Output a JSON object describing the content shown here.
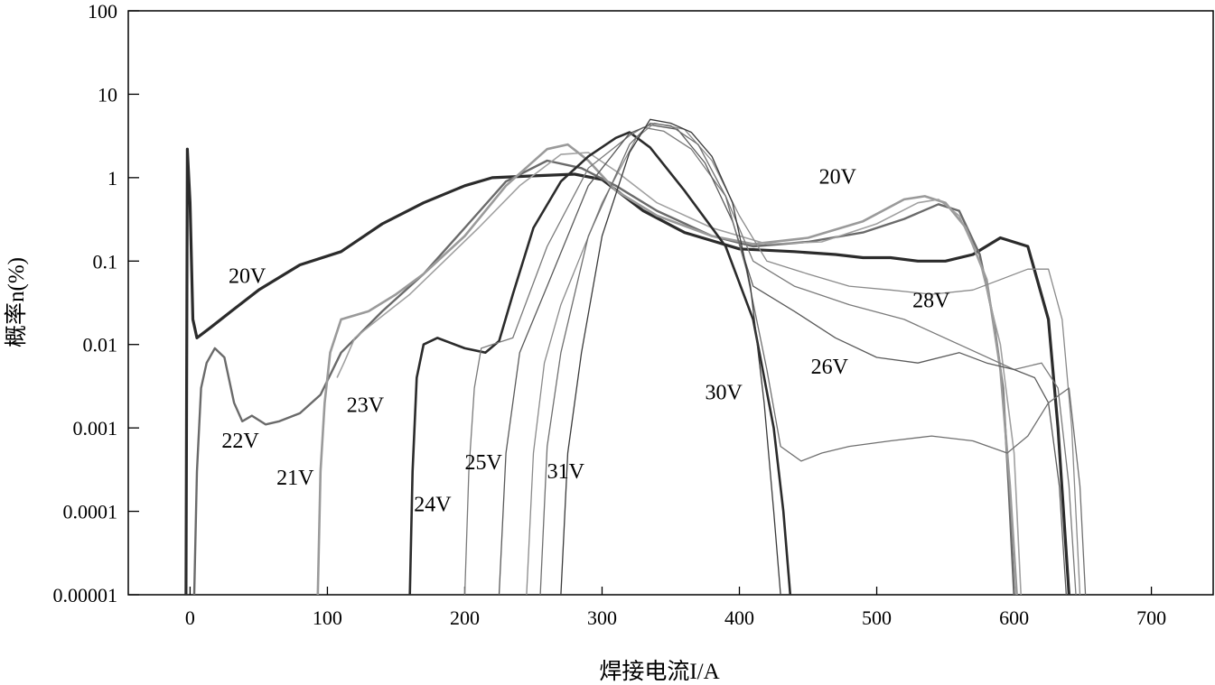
{
  "chart_data": {
    "type": "line",
    "title": "",
    "xlabel": "焊接电流I/A",
    "ylabel": "概率n(%)",
    "xlim": [
      -45,
      745
    ],
    "ylim": [
      1e-05,
      100
    ],
    "yscale": "log",
    "xticks": [
      0,
      100,
      200,
      300,
      400,
      500,
      600,
      700
    ],
    "xtick_labels": [
      "0",
      "100",
      "200",
      "300",
      "400",
      "500",
      "600",
      "700"
    ],
    "yticks": [
      1e-05,
      0.0001,
      0.001,
      0.01,
      0.1,
      1,
      10,
      100
    ],
    "ytick_labels": [
      "0.00001",
      "0.0001",
      "0.001",
      "0.01",
      "0.1",
      "1",
      "10",
      "100"
    ],
    "grid": false,
    "legend": "none",
    "series": [
      {
        "name": "20V",
        "color": "#2b2b2b",
        "x": [
          -3,
          -2,
          0,
          2,
          5,
          15,
          30,
          50,
          80,
          110,
          140,
          170,
          200,
          220,
          250,
          280,
          300,
          330,
          360,
          400,
          440,
          470,
          490,
          510,
          530,
          550,
          570,
          590,
          610,
          625,
          632,
          636,
          640
        ],
        "y": [
          1e-05,
          2.2,
          0.5,
          0.02,
          0.012,
          0.016,
          0.025,
          0.045,
          0.09,
          0.13,
          0.28,
          0.5,
          0.8,
          1.0,
          1.05,
          1.1,
          0.95,
          0.4,
          0.22,
          0.14,
          0.13,
          0.12,
          0.11,
          0.11,
          0.1,
          0.1,
          0.12,
          0.19,
          0.15,
          0.02,
          0.001,
          0.0001,
          1e-05
        ]
      },
      {
        "name": "22V",
        "color": "#6a6a6a",
        "x": [
          3,
          5,
          8,
          12,
          18,
          25,
          32,
          38,
          45,
          55,
          65,
          80,
          95,
          110,
          140,
          170,
          200,
          230,
          260,
          285,
          310,
          340,
          380,
          410,
          450,
          490,
          520,
          545,
          560,
          575,
          585,
          592,
          596,
          600
        ],
        "y": [
          1e-05,
          0.0003,
          0.003,
          0.006,
          0.009,
          0.007,
          0.002,
          0.0012,
          0.0014,
          0.0011,
          0.0012,
          0.0015,
          0.0025,
          0.008,
          0.025,
          0.07,
          0.25,
          0.9,
          1.6,
          1.3,
          0.8,
          0.4,
          0.2,
          0.15,
          0.17,
          0.22,
          0.32,
          0.48,
          0.4,
          0.12,
          0.02,
          0.003,
          0.0002,
          1e-05
        ]
      },
      {
        "name": "21V",
        "color": "#9a9a9a",
        "x": [
          93,
          95,
          98,
          102,
          110,
          130,
          150,
          170,
          200,
          230,
          260,
          275,
          290,
          310,
          340,
          380,
          410,
          450,
          490,
          520,
          535,
          550,
          565,
          580,
          590,
          597,
          602
        ],
        "y": [
          1e-05,
          0.0003,
          0.002,
          0.008,
          0.02,
          0.025,
          0.04,
          0.07,
          0.2,
          0.8,
          2.2,
          2.5,
          1.6,
          0.7,
          0.35,
          0.2,
          0.16,
          0.19,
          0.3,
          0.55,
          0.6,
          0.5,
          0.25,
          0.06,
          0.005,
          0.0002,
          1e-05
        ]
      },
      {
        "name": "23V",
        "color": "#a0a0a0",
        "x": [
          107,
          112,
          120,
          140,
          160,
          185,
          210,
          240,
          270,
          290,
          310,
          340,
          380,
          420,
          460,
          500,
          530,
          545,
          560,
          575,
          590,
          600,
          605
        ],
        "y": [
          0.004,
          0.006,
          0.012,
          0.022,
          0.04,
          0.1,
          0.25,
          0.8,
          1.9,
          2.0,
          1.2,
          0.5,
          0.25,
          0.16,
          0.17,
          0.28,
          0.5,
          0.55,
          0.35,
          0.1,
          0.01,
          0.0005,
          1e-05
        ]
      },
      {
        "name": "24V",
        "color": "#2b2b2b",
        "x": [
          160,
          162,
          165,
          170,
          180,
          200,
          215,
          225,
          235,
          250,
          270,
          290,
          310,
          320,
          335,
          360,
          390,
          410,
          425,
          432,
          437
        ],
        "y": [
          1e-05,
          0.0003,
          0.004,
          0.01,
          0.012,
          0.009,
          0.008,
          0.011,
          0.04,
          0.25,
          0.9,
          1.8,
          3.0,
          3.5,
          2.3,
          0.7,
          0.15,
          0.02,
          0.001,
          0.0001,
          1e-05
        ]
      },
      {
        "name": "25V",
        "color": "#7a7a7a",
        "x": [
          200,
          203,
          207,
          212,
          220,
          235,
          260,
          290,
          320,
          330,
          345,
          365,
          390,
          410,
          440,
          480,
          520,
          560,
          600,
          620,
          632,
          640,
          645
        ],
        "y": [
          1e-05,
          0.0003,
          0.003,
          0.009,
          0.01,
          0.012,
          0.15,
          1.3,
          3.2,
          4.0,
          3.6,
          2.2,
          0.6,
          0.1,
          0.05,
          0.03,
          0.02,
          0.01,
          0.005,
          0.006,
          0.003,
          0.0002,
          1e-05
        ]
      },
      {
        "name": "26V",
        "color": "#5a5a5a",
        "x": [
          225,
          230,
          240,
          260,
          290,
          320,
          335,
          355,
          375,
          395,
          410,
          440,
          470,
          500,
          530,
          560,
          580,
          600,
          615,
          625,
          633,
          638
        ],
        "y": [
          1e-05,
          0.0005,
          0.008,
          0.05,
          0.8,
          3.4,
          4.3,
          3.8,
          1.5,
          0.3,
          0.05,
          0.025,
          0.012,
          0.007,
          0.006,
          0.008,
          0.006,
          0.005,
          0.004,
          0.002,
          0.0002,
          1e-05
        ]
      },
      {
        "name": "28V",
        "color": "#8a8a8a",
        "x": [
          245,
          250,
          258,
          270,
          300,
          325,
          338,
          360,
          380,
          400,
          420,
          450,
          480,
          510,
          540,
          570,
          590,
          610,
          625,
          635,
          642,
          648
        ],
        "y": [
          1e-05,
          0.0005,
          0.006,
          0.03,
          0.5,
          3.0,
          4.5,
          3.8,
          1.6,
          0.35,
          0.1,
          0.07,
          0.05,
          0.045,
          0.04,
          0.045,
          0.06,
          0.08,
          0.08,
          0.02,
          0.001,
          1e-05
        ]
      },
      {
        "name": "30V",
        "color": "#6f6f6f",
        "x": [
          255,
          260,
          270,
          290,
          320,
          335,
          350,
          370,
          390,
          405,
          420,
          430,
          445,
          460,
          480,
          510,
          540,
          570,
          595,
          610,
          625,
          640,
          648,
          652
        ],
        "y": [
          1e-05,
          0.0006,
          0.008,
          0.2,
          2.5,
          4.5,
          4.2,
          2.5,
          0.6,
          0.08,
          0.005,
          0.0006,
          0.0004,
          0.0005,
          0.0006,
          0.0007,
          0.0008,
          0.0007,
          0.0005,
          0.0008,
          0.002,
          0.003,
          0.0002,
          1e-05
        ]
      },
      {
        "name": "31V",
        "color": "#3a3a3a",
        "x": [
          270,
          275,
          285,
          300,
          320,
          335,
          350,
          365,
          380,
          395,
          408,
          418,
          425,
          430
        ],
        "y": [
          1e-05,
          0.0005,
          0.008,
          0.2,
          2.0,
          5.0,
          4.5,
          3.5,
          1.8,
          0.5,
          0.05,
          0.002,
          0.0001,
          1e-05
        ]
      }
    ],
    "annotations": [
      {
        "text": "20V",
        "x": 458,
        "y": 0.85
      },
      {
        "text": "20V",
        "x": 28,
        "y": 0.055
      },
      {
        "text": "28V",
        "x": 526,
        "y": 0.028
      },
      {
        "text": "26V",
        "x": 452,
        "y": 0.0045
      },
      {
        "text": "30V",
        "x": 375,
        "y": 0.0022
      },
      {
        "text": "23V",
        "x": 114,
        "y": 0.00155
      },
      {
        "text": "22V",
        "x": 23,
        "y": 0.00058
      },
      {
        "text": "25V",
        "x": 200,
        "y": 0.00032
      },
      {
        "text": "31V",
        "x": 260,
        "y": 0.00025
      },
      {
        "text": "21V",
        "x": 63,
        "y": 0.00021
      },
      {
        "text": "24V",
        "x": 163,
        "y": 0.0001
      }
    ]
  }
}
